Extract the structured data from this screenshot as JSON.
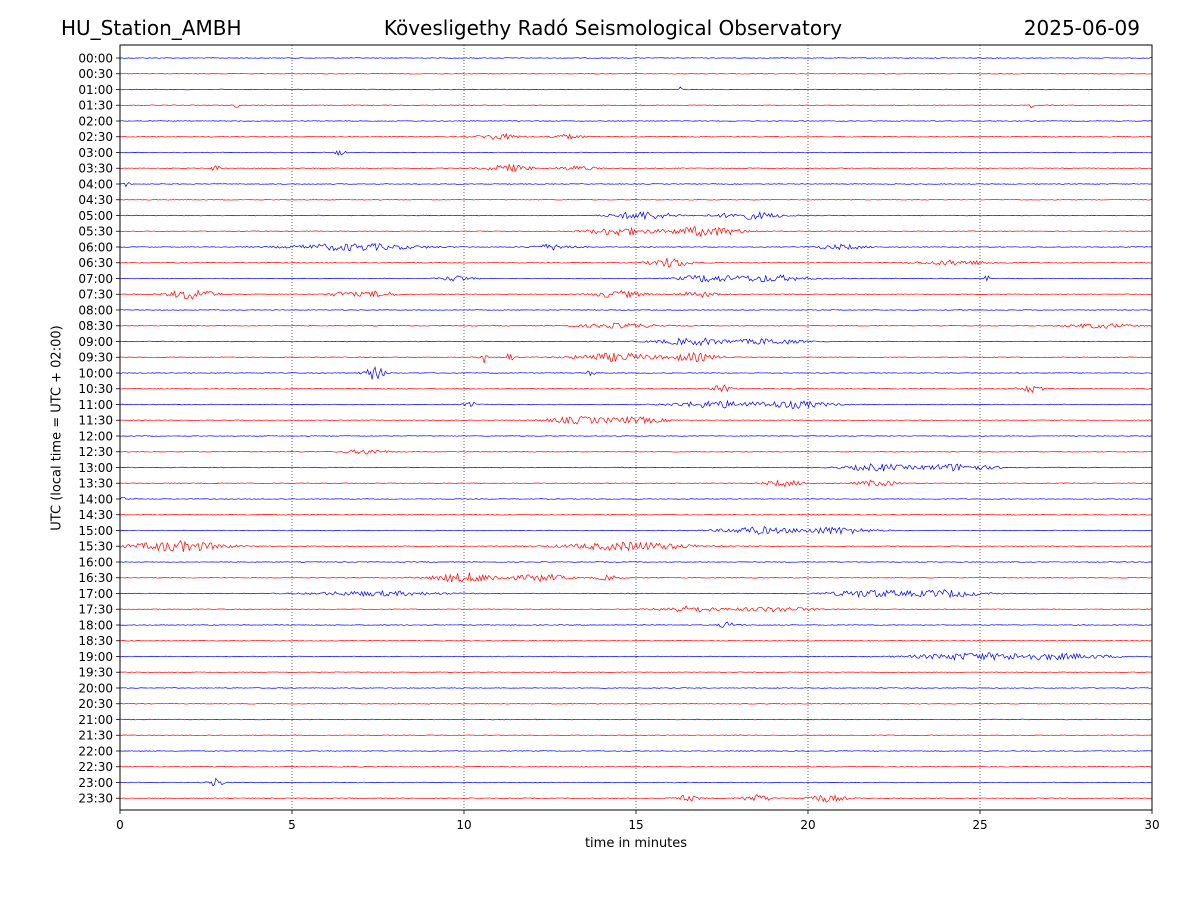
{
  "header": {
    "station": "HU_Station_AMBH",
    "observatory": "Kövesligethy Radó Seismological Observatory",
    "date": "2025-06-09"
  },
  "chart_data": {
    "type": "line",
    "xlabel": "time in minutes",
    "ylabel": "UTC (local time = UTC + 02:00)",
    "xlim": [
      0,
      30
    ],
    "xticks": [
      "0",
      "5",
      "10",
      "15",
      "20",
      "25",
      "30"
    ],
    "vertical_gridlines_dotted": [
      5,
      10,
      15,
      20,
      25
    ],
    "trace_colors": [
      "#0000ff",
      "#ff0000"
    ],
    "rows": [
      {
        "label": "00:00",
        "events": []
      },
      {
        "label": "00:30",
        "events": []
      },
      {
        "label": "01:00",
        "events": [
          [
            16.3,
            0.1,
            0.4
          ]
        ]
      },
      {
        "label": "01:30",
        "events": [
          [
            3.4,
            0.1,
            0.4
          ],
          [
            26.5,
            0.1,
            0.4
          ]
        ]
      },
      {
        "label": "02:00",
        "events": []
      },
      {
        "label": "02:30",
        "events": [
          [
            11.0,
            0.8,
            0.5
          ],
          [
            13.0,
            0.7,
            0.4
          ]
        ]
      },
      {
        "label": "03:00",
        "events": [
          [
            6.4,
            0.2,
            0.5
          ]
        ]
      },
      {
        "label": "03:30",
        "events": [
          [
            2.8,
            0.2,
            0.5
          ],
          [
            11.3,
            0.9,
            0.6
          ],
          [
            13.3,
            0.7,
            0.4
          ]
        ]
      },
      {
        "label": "04:00",
        "events": [
          [
            0.2,
            0.15,
            0.4
          ]
        ]
      },
      {
        "label": "04:30",
        "events": []
      },
      {
        "label": "05:00",
        "events": [
          [
            15.2,
            1.2,
            0.7
          ],
          [
            18.3,
            1.3,
            0.6
          ]
        ]
      },
      {
        "label": "05:30",
        "events": [
          [
            14.5,
            1.2,
            0.7
          ],
          [
            17.0,
            1.5,
            0.8
          ]
        ]
      },
      {
        "label": "06:00",
        "events": [
          [
            6.8,
            2.5,
            0.6
          ],
          [
            12.6,
            0.8,
            0.5
          ],
          [
            21.0,
            1.0,
            0.4
          ]
        ]
      },
      {
        "label": "06:30",
        "events": [
          [
            16.0,
            0.8,
            0.8
          ],
          [
            24.3,
            1.5,
            0.4
          ]
        ]
      },
      {
        "label": "07:00",
        "events": [
          [
            9.8,
            0.6,
            0.5
          ],
          [
            17.0,
            1.0,
            0.6
          ],
          [
            18.8,
            1.5,
            0.6
          ],
          [
            25.2,
            0.05,
            1.6
          ]
        ]
      },
      {
        "label": "07:30",
        "events": [
          [
            2.1,
            0.9,
            0.9
          ],
          [
            6.5,
            0.6,
            0.4
          ],
          [
            7.5,
            0.7,
            0.5
          ],
          [
            14.5,
            1.0,
            0.6
          ],
          [
            16.8,
            0.8,
            0.5
          ]
        ]
      },
      {
        "label": "08:00",
        "events": []
      },
      {
        "label": "08:30",
        "events": [
          [
            14.5,
            1.5,
            0.4
          ],
          [
            28.5,
            1.2,
            0.4
          ]
        ]
      },
      {
        "label": "09:00",
        "events": [
          [
            16.7,
            1.4,
            0.6
          ],
          [
            18.9,
            1.2,
            0.5
          ]
        ]
      },
      {
        "label": "09:30",
        "events": [
          [
            10.6,
            0.15,
            1.1
          ],
          [
            11.3,
            0.2,
            0.8
          ],
          [
            14.4,
            1.6,
            0.7
          ],
          [
            16.7,
            0.9,
            0.7
          ]
        ]
      },
      {
        "label": "10:00",
        "events": [
          [
            7.4,
            0.4,
            1.1
          ],
          [
            13.7,
            0.2,
            0.4
          ]
        ]
      },
      {
        "label": "10:30",
        "events": [
          [
            17.5,
            0.4,
            0.6
          ],
          [
            26.5,
            0.5,
            0.6
          ]
        ]
      },
      {
        "label": "11:00",
        "events": [
          [
            10.2,
            0.3,
            0.4
          ],
          [
            17.3,
            1.6,
            0.6
          ],
          [
            19.6,
            1.4,
            0.6
          ]
        ]
      },
      {
        "label": "11:30",
        "events": [
          [
            13.3,
            1.2,
            0.6
          ],
          [
            15.0,
            1.2,
            0.5
          ]
        ]
      },
      {
        "label": "12:00",
        "events": []
      },
      {
        "label": "12:30",
        "events": [
          [
            7.2,
            0.8,
            0.4
          ]
        ]
      },
      {
        "label": "13:00",
        "events": [
          [
            22.0,
            1.2,
            0.6
          ],
          [
            24.3,
            1.4,
            0.6
          ]
        ]
      },
      {
        "label": "13:30",
        "events": [
          [
            19.3,
            0.8,
            0.5
          ],
          [
            22.0,
            0.8,
            0.5
          ]
        ]
      },
      {
        "label": "14:00",
        "events": [
          [
            0.1,
            0.1,
            0.4
          ]
        ]
      },
      {
        "label": "14:30",
        "events": []
      },
      {
        "label": "15:00",
        "events": [
          [
            18.5,
            1.4,
            0.6
          ],
          [
            20.8,
            1.4,
            0.6
          ]
        ]
      },
      {
        "label": "15:30",
        "events": [
          [
            1.7,
            1.8,
            0.9
          ],
          [
            14.8,
            2.5,
            0.7
          ]
        ]
      },
      {
        "label": "16:00",
        "events": []
      },
      {
        "label": "16:30",
        "events": [
          [
            10.1,
            1.4,
            0.8
          ],
          [
            12.3,
            1.0,
            0.6
          ],
          [
            14.2,
            0.5,
            0.4
          ]
        ]
      },
      {
        "label": "17:00",
        "events": [
          [
            7.5,
            2.5,
            0.4
          ],
          [
            21.8,
            1.6,
            0.6
          ],
          [
            24.0,
            1.4,
            0.6
          ]
        ]
      },
      {
        "label": "17:30",
        "events": [
          [
            16.5,
            1.2,
            0.5
          ],
          [
            19.0,
            1.6,
            0.4
          ]
        ]
      },
      {
        "label": "18:00",
        "events": [
          [
            17.7,
            0.4,
            0.5
          ]
        ]
      },
      {
        "label": "18:30",
        "events": []
      },
      {
        "label": "19:00",
        "events": [
          [
            24.5,
            2.0,
            0.5
          ],
          [
            27.0,
            2.5,
            0.5
          ]
        ]
      },
      {
        "label": "19:30",
        "events": []
      },
      {
        "label": "20:00",
        "events": []
      },
      {
        "label": "20:30",
        "events": []
      },
      {
        "label": "21:00",
        "events": []
      },
      {
        "label": "21:30",
        "events": []
      },
      {
        "label": "22:00",
        "events": []
      },
      {
        "label": "22:30",
        "events": []
      },
      {
        "label": "23:00",
        "events": [
          [
            2.8,
            0.3,
            0.7
          ]
        ]
      },
      {
        "label": "23:30",
        "events": [
          [
            16.5,
            0.5,
            0.5
          ],
          [
            18.5,
            0.6,
            0.6
          ],
          [
            20.5,
            0.8,
            0.6
          ]
        ]
      }
    ]
  }
}
